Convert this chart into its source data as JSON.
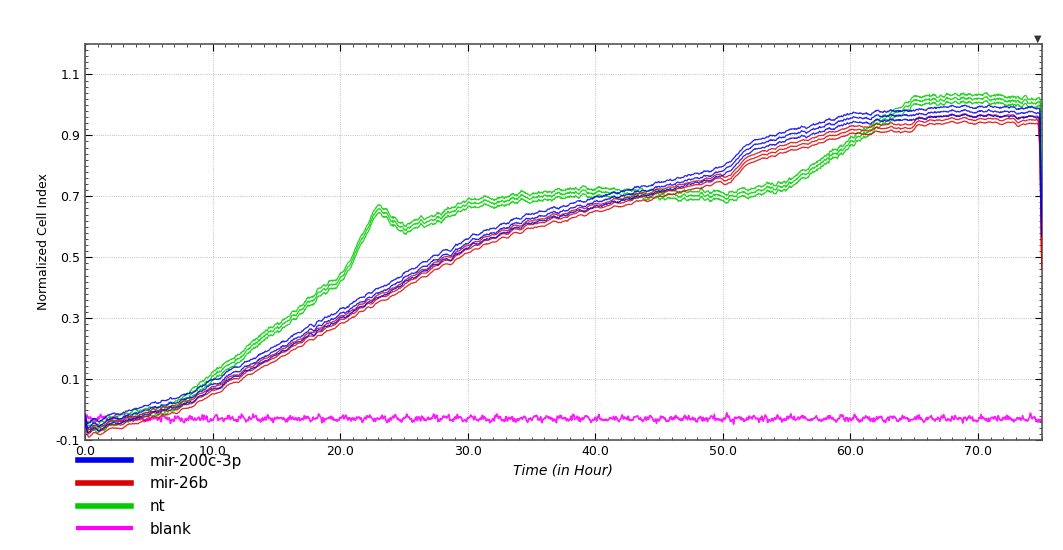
{
  "xlabel": "Time (in Hour)",
  "ylabel": "Normalized Cell Index",
  "xlim": [
    0.0,
    75.0
  ],
  "ylim": [
    -0.1,
    1.2
  ],
  "yticks": [
    -0.1,
    0.1,
    0.3,
    0.5,
    0.7,
    0.9,
    1.1
  ],
  "xticks": [
    0.0,
    10.0,
    20.0,
    30.0,
    40.0,
    50.0,
    60.0,
    70.0
  ],
  "colors": {
    "mir200c": "#0000EE",
    "mir26b": "#DD0000",
    "nt": "#00CC00",
    "blank": "#FF00FF"
  },
  "bg_color": "#FFFFFF",
  "plot_bg": "#FFFFFF",
  "border_color": "#555555",
  "grid_color": "#999999",
  "linewidth": 2.2,
  "blank_level": -0.03
}
